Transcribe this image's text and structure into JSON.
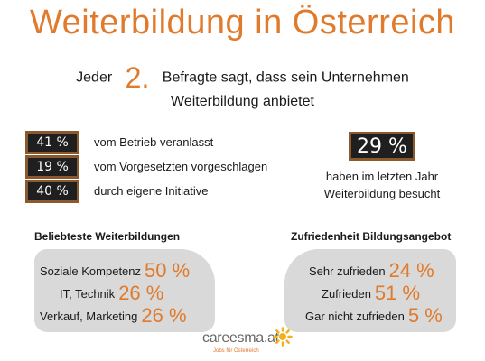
{
  "title": "Weiterbildung in Österreich",
  "intro": {
    "pre": "Jeder",
    "big": "2.",
    "post": "Befragte sagt, dass sein Unternehmen",
    "line2": "Weiterbildung anbietet"
  },
  "stats": [
    {
      "value": "41 %",
      "label": "vom Betrieb veranlasst"
    },
    {
      "value": "19 %",
      "label": "vom Vorgesetzten vorgeschlagen"
    },
    {
      "value": "40 %",
      "label": "durch eigene Initiative"
    }
  ],
  "highlight": {
    "value": "29 %",
    "caption_line1": "haben im letzten Jahr",
    "caption_line2": "Weiterbildung  besucht"
  },
  "popular": {
    "title": "Beliebteste Weiterbildungen",
    "items": [
      {
        "label": "Soziale Kompetenz",
        "value": "50 %"
      },
      {
        "label": "IT, Technik",
        "value": "26 %"
      },
      {
        "label": "Verkauf, Marketing",
        "value": "26 %"
      }
    ]
  },
  "satisfaction": {
    "title": "Zufriedenheit Bildungsangebot",
    "items": [
      {
        "label": "Sehr zufrieden",
        "value": "24 %"
      },
      {
        "label": "Zufrieden",
        "value": "51 %"
      },
      {
        "label": "Gar nicht zufrieden",
        "value": "5 %"
      }
    ]
  },
  "logo": {
    "word": "careesma.at",
    "sub": "Jobs für Österreich",
    "icon": "sun-icon"
  },
  "colors": {
    "accent": "#e07a2c",
    "chalkboard": "#1f1f1f",
    "frame": "#8a5a2e",
    "panel": "#d9d9d9"
  }
}
